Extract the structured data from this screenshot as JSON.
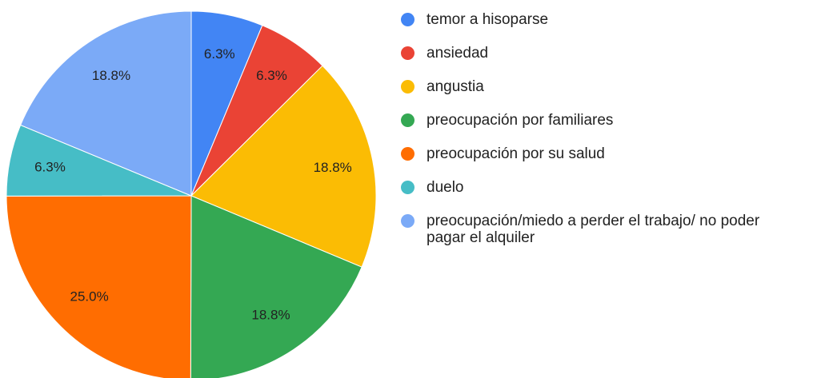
{
  "chart_data": {
    "type": "pie",
    "categories": [
      "temor a hisoparse",
      "ansiedad",
      "angustia",
      "preocupación por familiares",
      "preocupación por su salud",
      "duelo",
      "preocupación/miedo a perder el trabajo/ no poder pagar el alquiler"
    ],
    "values": [
      6.3,
      6.3,
      18.8,
      18.8,
      25.0,
      6.3,
      18.8
    ],
    "value_labels": [
      "6.3%",
      "6.3%",
      "18.8%",
      "18.8%",
      "25.0%",
      "6.3%",
      "18.8%"
    ],
    "colors": [
      "#4285f4",
      "#ea4335",
      "#fbbc04",
      "#34a853",
      "#ff6d01",
      "#46bdc6",
      "#7baaf7"
    ],
    "legend": "right"
  }
}
